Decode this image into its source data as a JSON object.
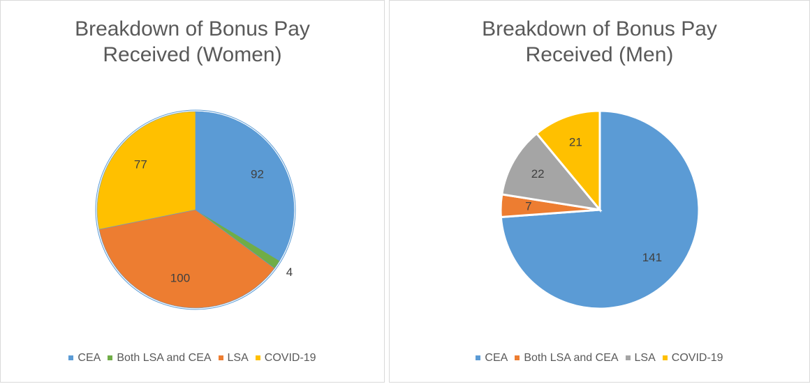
{
  "chart_data": [
    {
      "type": "pie",
      "title": "Breakdown of Bonus Pay Received (Women)",
      "categories": [
        "CEA",
        "Both LSA and CEA",
        "LSA",
        "COVID-19"
      ],
      "values": [
        92,
        4,
        100,
        77
      ],
      "colors": [
        "#5b9bd5",
        "#70ad47",
        "#ed7d31",
        "#ffc000"
      ],
      "legend": "bottom"
    },
    {
      "type": "pie",
      "title": "Breakdown of Bonus Pay Received (Men)",
      "categories": [
        "CEA",
        "Both LSA and CEA",
        "LSA",
        "COVID-19"
      ],
      "values": [
        141,
        7,
        22,
        21
      ],
      "colors": [
        "#5b9bd5",
        "#ed7d31",
        "#a5a5a5",
        "#ffc000"
      ],
      "legend": "bottom"
    }
  ]
}
